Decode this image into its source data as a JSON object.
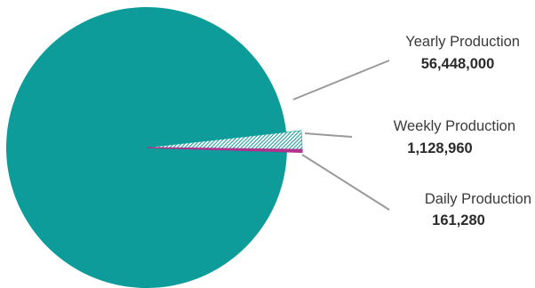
{
  "chart_data": {
    "type": "pie",
    "title": "",
    "slices": [
      {
        "name": "Yearly Production",
        "value_label": "56,448,000",
        "value": 56448000,
        "color": "#0d9c99",
        "fill": "solid"
      },
      {
        "name": "Weekly Production",
        "value_label": "1,128,960",
        "value": 1128960,
        "color": "#0d9c99",
        "fill": "hatched"
      },
      {
        "name": "Daily Production",
        "value_label": "161,280",
        "value": 161280,
        "color": "#b0328f",
        "fill": "solid"
      }
    ],
    "legend": "none",
    "labels": "outside-with-leader-lines"
  }
}
